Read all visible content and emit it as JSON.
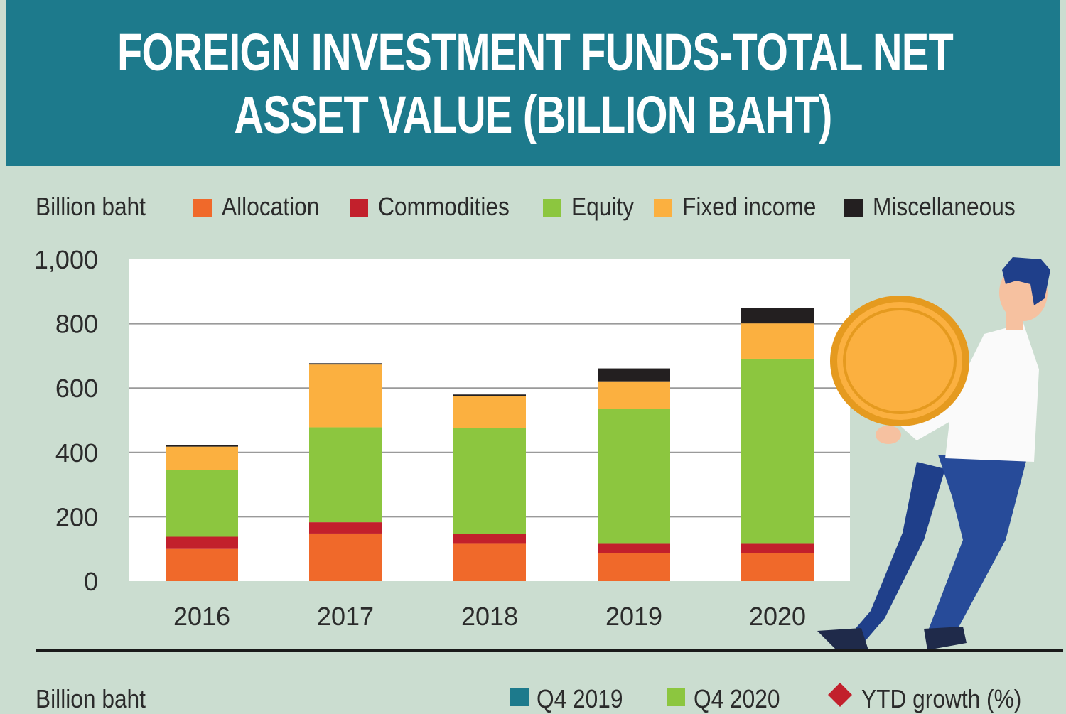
{
  "header": {
    "title_line1": "FOREIGN INVESTMENT FUNDS-TOTAL NET",
    "title_line2": "ASSET VALUE (BILLION BAHT)"
  },
  "colors": {
    "banner": "#1d7a8c",
    "background": "#cbddd0",
    "allocation": "#f0692a",
    "commodities": "#c2202c",
    "equity": "#8cc63f",
    "fixed_income": "#fbb040",
    "miscellaneous": "#231f20",
    "q4_2019": "#1d7a8c",
    "q4_2020": "#8cc63f",
    "ytd_growth": "#c2202c"
  },
  "chart_data": {
    "type": "bar",
    "stacked": true,
    "unit_label": "Billion baht",
    "categories": [
      "2016",
      "2017",
      "2018",
      "2019",
      "2020"
    ],
    "series": [
      {
        "name": "Allocation",
        "values": [
          100,
          148,
          116,
          88,
          88
        ]
      },
      {
        "name": "Commodities",
        "values": [
          38,
          35,
          30,
          28,
          28
        ]
      },
      {
        "name": "Equity",
        "values": [
          207,
          295,
          330,
          420,
          575
        ]
      },
      {
        "name": "Fixed income",
        "values": [
          73,
          195,
          100,
          85,
          110
        ]
      },
      {
        "name": "Miscellaneous",
        "values": [
          4,
          4,
          4,
          40,
          48
        ]
      }
    ],
    "yticks": [
      "0",
      "200",
      "400",
      "600",
      "800",
      "1,000"
    ],
    "ylim": [
      0,
      1000
    ],
    "grid": true,
    "legend_position": "top"
  },
  "bottom_panel": {
    "unit_label": "Billion baht",
    "legend": [
      "Q4 2019",
      "Q4 2020",
      "YTD growth (%)"
    ]
  }
}
